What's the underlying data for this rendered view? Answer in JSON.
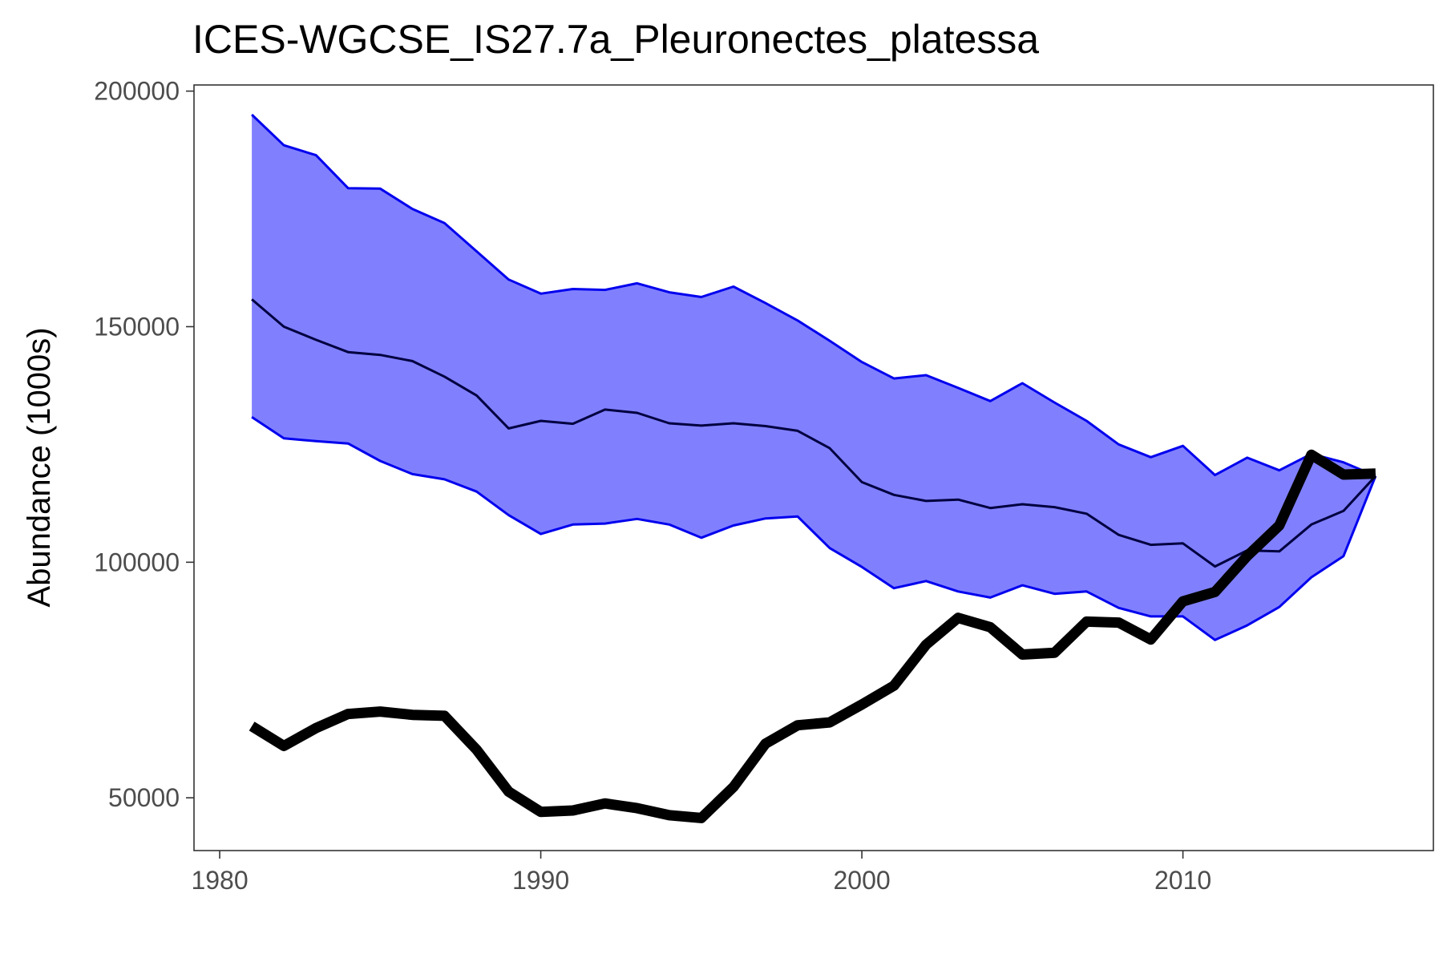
{
  "chart_data": {
    "type": "line",
    "title": "ICES-WGCSE_IS27.7a_Pleuronectes_platessa",
    "xlabel": "",
    "ylabel": "Abundance (1000s)",
    "xlim": [
      1979.2,
      2017.8
    ],
    "ylim": [
      38800,
      201300
    ],
    "xticks": [
      1980,
      1990,
      2000,
      2010
    ],
    "yticks": [
      50000,
      100000,
      150000,
      200000
    ],
    "x": [
      1981,
      1982,
      1983,
      1984,
      1985,
      1986,
      1987,
      1988,
      1989,
      1990,
      1991,
      1992,
      1993,
      1994,
      1995,
      1996,
      1997,
      1998,
      1999,
      2000,
      2001,
      2002,
      2003,
      2004,
      2005,
      2006,
      2007,
      2008,
      2009,
      2010,
      2011,
      2012,
      2013,
      2014,
      2015,
      2016
    ],
    "series": [
      {
        "role": "band-upper",
        "values": [
          195000,
          188500,
          186400,
          179400,
          179300,
          175000,
          172000,
          166000,
          160000,
          157000,
          158000,
          157800,
          159200,
          157300,
          156300,
          158500,
          155000,
          151300,
          147000,
          142500,
          139000,
          139700,
          137000,
          134200,
          138000,
          133900,
          130000,
          125000,
          122300,
          124700,
          118500,
          122200,
          119500,
          123000,
          121200,
          118300
        ]
      },
      {
        "role": "band-lower",
        "values": [
          130800,
          126300,
          125700,
          125200,
          121500,
          118700,
          117600,
          115000,
          110000,
          106000,
          108000,
          108200,
          109200,
          108000,
          105200,
          107800,
          109300,
          109700,
          103000,
          99000,
          94500,
          96000,
          93800,
          92500,
          95100,
          93300,
          93800,
          90300,
          88500,
          88500,
          83500,
          86600,
          90500,
          96800,
          101300,
          118300
        ]
      },
      {
        "role": "median",
        "values": [
          155800,
          150000,
          147200,
          144600,
          144000,
          142700,
          139400,
          135400,
          128400,
          130000,
          129400,
          132400,
          131700,
          129500,
          129000,
          129500,
          128900,
          127900,
          124200,
          117000,
          114300,
          113000,
          113300,
          111500,
          112300,
          111700,
          110300,
          105800,
          103700,
          104000,
          99100,
          102500,
          102300,
          108000,
          110900,
          118300
        ]
      },
      {
        "role": "estimate",
        "values": [
          65200,
          61000,
          64800,
          67800,
          68300,
          67600,
          67400,
          60200,
          51300,
          47000,
          47300,
          48800,
          47800,
          46300,
          45700,
          52300,
          61500,
          65400,
          66000,
          69800,
          73800,
          82500,
          88200,
          86200,
          80400,
          80800,
          87400,
          87200,
          83600,
          91700,
          93700,
          101300,
          107800,
          122800,
          118600,
          118800
        ]
      }
    ],
    "colors": {
      "band_fill": "#8080ff",
      "band_line": "#0000ee",
      "median_line": "#000040",
      "estimate_line": "#000000",
      "panel_border": "#333333",
      "tick_text": "#4d4d4d"
    },
    "grid": false,
    "legend": "none"
  }
}
